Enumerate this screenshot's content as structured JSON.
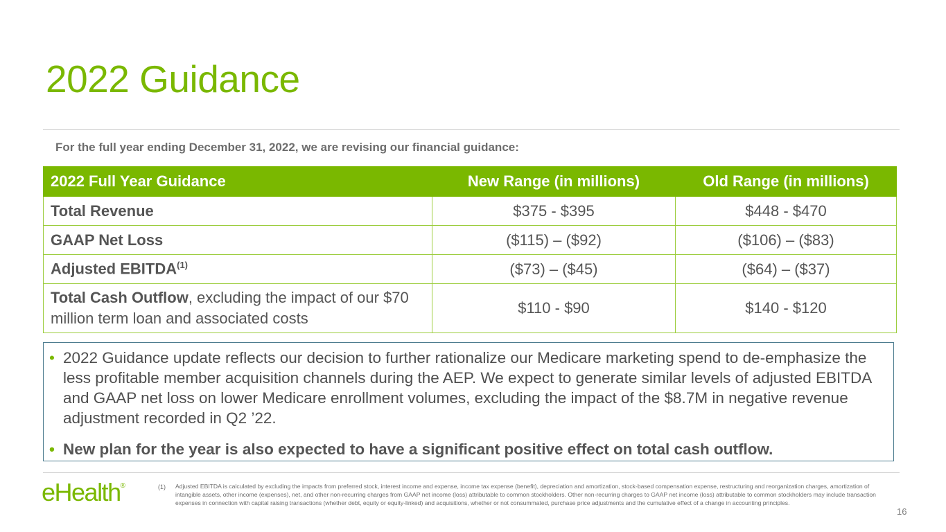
{
  "title": "2022 Guidance",
  "subtitle": "For the full year ending December 31, 2022, we are revising our financial guidance:",
  "table": {
    "headers": [
      "2022 Full Year Guidance",
      "New Range (in millions)",
      "Old Range (in millions)"
    ],
    "rows": [
      {
        "label": "Total Revenue",
        "label_rest": "",
        "new": "$375 - $395",
        "old": "$448 - $470"
      },
      {
        "label": "GAAP Net Loss",
        "label_rest": "",
        "new": "($115) – ($92)",
        "old": "($106) – ($83)"
      },
      {
        "label": "Adjusted EBITDA",
        "label_sup": "(1)",
        "new": "($73) – ($45)",
        "old": "($64) – ($37)"
      },
      {
        "label": "Total Cash Outflow",
        "label_rest": ", excluding the impact of our $70 million term loan and associated costs",
        "new": "$110 - $90",
        "old": "$140 - $120"
      }
    ]
  },
  "bullets": [
    "2022 Guidance update reflects our decision to further rationalize our Medicare marketing spend to de-emphasize the less profitable member acquisition channels during the AEP.  We expect to generate similar levels of adjusted EBITDA and GAAP net loss on lower Medicare enrollment volumes, excluding the impact of the $8.7M in negative revenue adjustment recorded in Q2 ’22.",
    "New plan for the year is also expected to have a significant positive effect on total cash outflow."
  ],
  "bullet_symbol": "•",
  "logo": {
    "text": "eHealth",
    "mark": "®"
  },
  "footnote": {
    "marker": "(1)",
    "text": "Adjusted EBITDA is calculated by excluding the impacts from preferred stock, interest income and expense, income tax expense (benefit), depreciation and amortization, stock-based compensation expense, restructuring and reorganization charges, amortization of intangible assets, other income (expenses), net, and other non-recurring charges from GAAP net income (loss) attributable to common stockholders. Other non-recurring charges to GAAP net income (loss) attributable to common stockholders may include transaction expenses in connection with capital raising transactions (whether debt, equity or equity-linked) and acquisitions, whether or not consummated, purchase price adjustments and the cumulative effect of a change in accounting principles."
  },
  "page_number": "16",
  "colors": {
    "accent": "#7ab800",
    "box_border": "#4b7b8e",
    "text": "#555555"
  }
}
